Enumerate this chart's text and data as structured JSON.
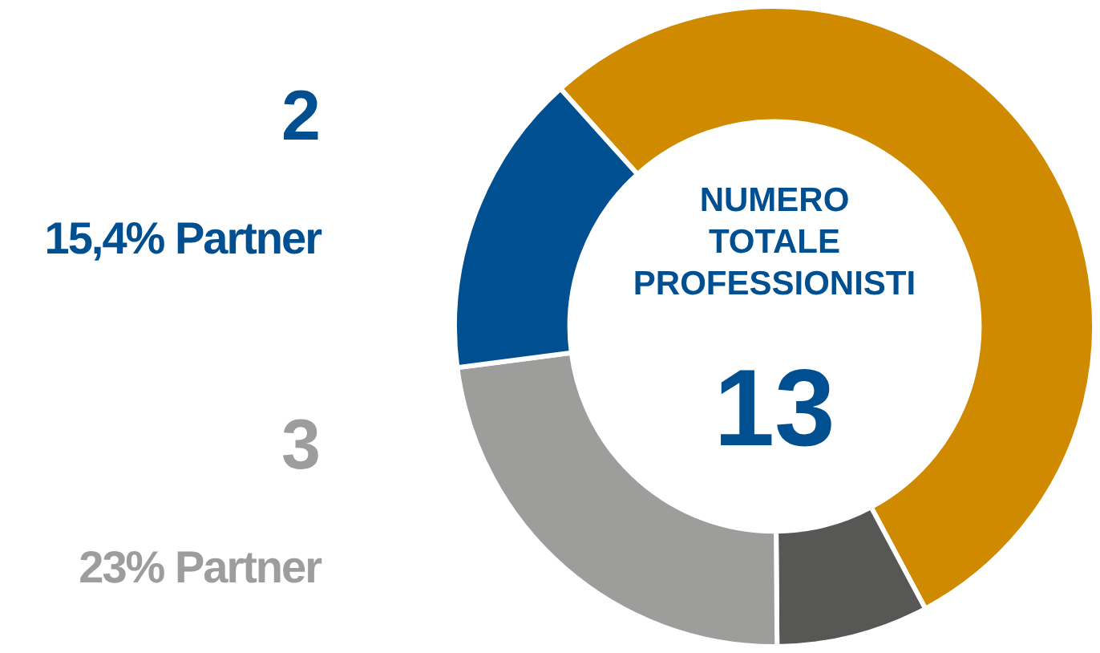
{
  "chart_data": {
    "type": "donut",
    "title": "NUMERO TOTALE PROFESSIONISTI",
    "annotations": [
      "13"
    ],
    "categories": [
      null,
      null,
      "23% Partner",
      "15,4% Partner"
    ],
    "values": [
      7,
      1,
      3,
      2
    ],
    "value_labels": [
      null,
      null,
      "3",
      "2"
    ],
    "colors": [
      "#d08a00",
      "#575756",
      "#9d9d9c",
      "#004f91"
    ],
    "legend": false
  }
}
